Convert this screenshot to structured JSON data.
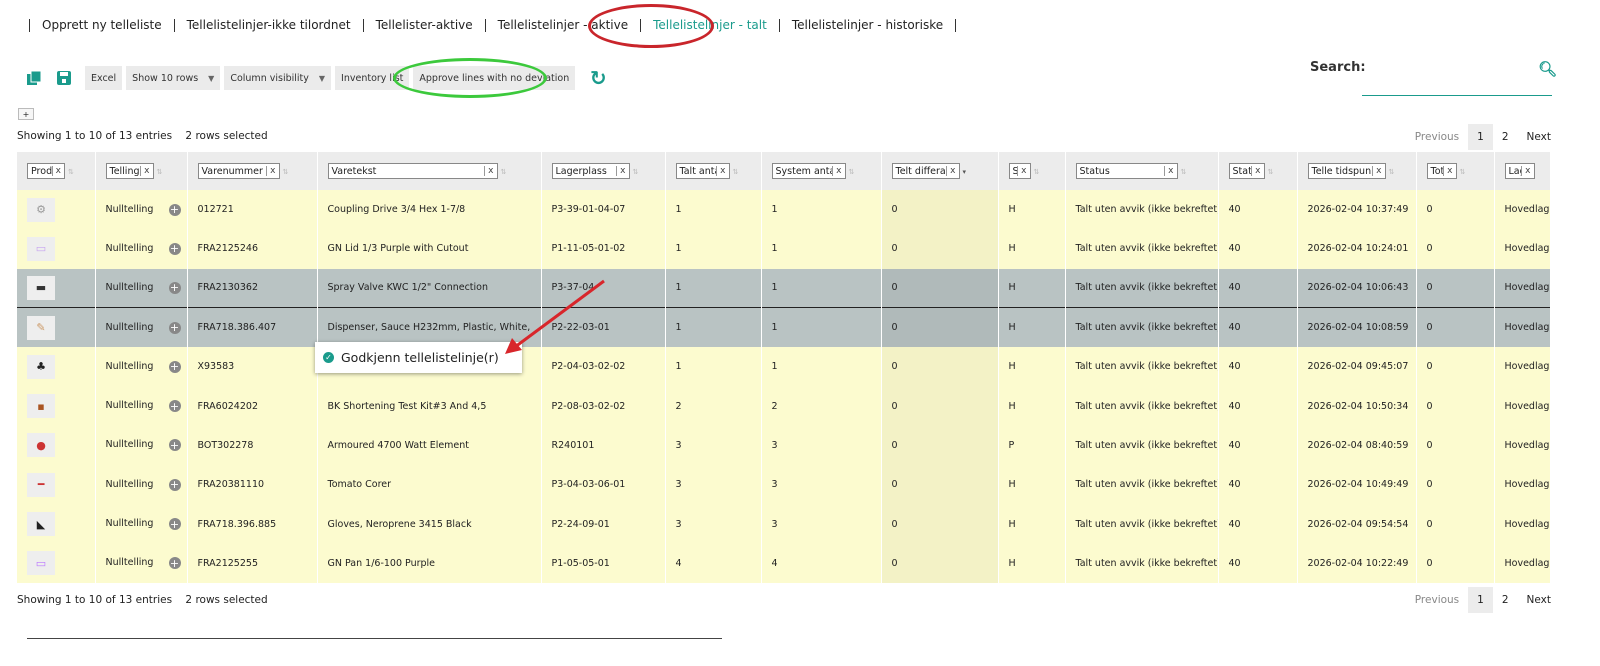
{
  "nav": {
    "tabs": [
      "Opprett ny telleliste",
      "Tellelistelinjer-ikke tilordnet",
      "Tellelister-aktive",
      "Tellelistelinjer - aktive",
      "Tellelistelinjer - talt",
      "Tellelistelinjer - historiske"
    ],
    "active": "Tellelistelinjer - talt"
  },
  "toolbar": {
    "icons": [
      "copy-icon",
      "save-icon"
    ],
    "excel": "Excel",
    "show_rows": "Show 10 rows",
    "column_visibility": "Column visibility",
    "inventory_list": "Inventory list",
    "approve": "Approve lines with no deviation",
    "refresh_icon": "refresh-icon",
    "expand": "+"
  },
  "search": {
    "label": "Search:",
    "value": ""
  },
  "info": {
    "showing": "Showing 1 to 10 of 13 entries",
    "selected": "2 rows selected"
  },
  "pager": {
    "previous": "Previous",
    "pages": [
      "1",
      "2"
    ],
    "current": "1",
    "next": "Next"
  },
  "columns": [
    "Produkt",
    "Telling",
    "Varenummer",
    "Varetekst",
    "Lagerplass",
    "Talt antall",
    "System antall",
    "Telt differanse",
    "Sone",
    "Status",
    "Statuslinje",
    "Telle tidspunkt",
    "Total p",
    "Lagersted"
  ],
  "rows": [
    {
      "telling": "Nulltelling",
      "varenr": "012721",
      "tekst": "Coupling Drive 3/4 Hex 1-7/8",
      "lager": "P3-39-01-04-07",
      "talt": "1",
      "system": "1",
      "diff": "0",
      "sone": "H",
      "status": "Talt uten avvik (ikke bekreftet)",
      "statusl": "40",
      "tid": "2026-02-04 10:37:49",
      "total": "0",
      "lagersted": "Hovedlager",
      "selected": false
    },
    {
      "telling": "Nulltelling",
      "varenr": "FRA2125246",
      "tekst": "GN Lid 1/3 Purple with Cutout",
      "lager": "P1-11-05-01-02",
      "talt": "1",
      "system": "1",
      "diff": "0",
      "sone": "H",
      "status": "Talt uten avvik (ikke bekreftet)",
      "statusl": "40",
      "tid": "2026-02-04 10:24:01",
      "total": "0",
      "lagersted": "Hovedlager",
      "selected": false
    },
    {
      "telling": "Nulltelling",
      "varenr": "FRA2130362",
      "tekst": "Spray Valve KWC 1/2\" Connection",
      "lager": "P3-37-04",
      "talt": "1",
      "system": "1",
      "diff": "0",
      "sone": "H",
      "status": "Talt uten avvik (ikke bekreftet)",
      "statusl": "40",
      "tid": "2026-02-04 10:06:43",
      "total": "0",
      "lagersted": "Hovedlager",
      "selected": true
    },
    {
      "telling": "Nulltelling",
      "varenr": "FRA718.386.407",
      "tekst": "Dispenser, Sauce H232mm, Plastic, White,",
      "lager": "P2-22-03-01",
      "talt": "1",
      "system": "1",
      "diff": "0",
      "sone": "H",
      "status": "Talt uten avvik (ikke bekreftet)",
      "statusl": "40",
      "tid": "2026-02-04 10:08:59",
      "total": "0",
      "lagersted": "Hovedlager",
      "selected": true
    },
    {
      "telling": "Nulltelling",
      "varenr": "X93583",
      "tekst": "",
      "lager": "P2-04-03-02-02",
      "talt": "1",
      "system": "1",
      "diff": "0",
      "sone": "H",
      "status": "Talt uten avvik (ikke bekreftet)",
      "statusl": "40",
      "tid": "2026-02-04 09:45:07",
      "total": "0",
      "lagersted": "Hovedlager",
      "selected": false
    },
    {
      "telling": "Nulltelling",
      "varenr": "FRA6024202",
      "tekst": "BK Shortening Test Kit#3 And 4,5",
      "lager": "P2-08-03-02-02",
      "talt": "2",
      "system": "2",
      "diff": "0",
      "sone": "H",
      "status": "Talt uten avvik (ikke bekreftet)",
      "statusl": "40",
      "tid": "2026-02-04 10:50:34",
      "total": "0",
      "lagersted": "Hovedlager",
      "selected": false
    },
    {
      "telling": "Nulltelling",
      "varenr": "BOT302278",
      "tekst": "Armoured 4700 Watt Element",
      "lager": "R240101",
      "talt": "3",
      "system": "3",
      "diff": "0",
      "sone": "P",
      "status": "Talt uten avvik (ikke bekreftet)",
      "statusl": "40",
      "tid": "2026-02-04 08:40:59",
      "total": "0",
      "lagersted": "Hovedlager",
      "selected": false
    },
    {
      "telling": "Nulltelling",
      "varenr": "FRA20381110",
      "tekst": "Tomato Corer",
      "lager": "P3-04-03-06-01",
      "talt": "3",
      "system": "3",
      "diff": "0",
      "sone": "H",
      "status": "Talt uten avvik (ikke bekreftet)",
      "statusl": "40",
      "tid": "2026-02-04 10:49:49",
      "total": "0",
      "lagersted": "Hovedlager",
      "selected": false
    },
    {
      "telling": "Nulltelling",
      "varenr": "FRA718.396.885",
      "tekst": "Gloves, Neroprene 3415 Black",
      "lager": "P2-24-09-01",
      "talt": "3",
      "system": "3",
      "diff": "0",
      "sone": "H",
      "status": "Talt uten avvik (ikke bekreftet)",
      "statusl": "40",
      "tid": "2026-02-04 09:54:54",
      "total": "0",
      "lagersted": "Hovedlager",
      "selected": false
    },
    {
      "telling": "Nulltelling",
      "varenr": "FRA2125255",
      "tekst": "GN Pan 1/6-100 Purple",
      "lager": "P1-05-05-01",
      "talt": "4",
      "system": "4",
      "diff": "0",
      "sone": "H",
      "status": "Talt uten avvik (ikke bekreftet)",
      "statusl": "40",
      "tid": "2026-02-04 10:22:49",
      "total": "0",
      "lagersted": "Hovedlager",
      "selected": false
    }
  ],
  "context_menu": {
    "label": "Godkjenn tellelistelinje(r)",
    "icon": "check-circle-icon"
  },
  "colors": {
    "accent": "#1a9b8c",
    "row_yellow": "#fcfbcf",
    "row_selected": "#b9c3c3",
    "annotation_red": "#c9252b",
    "annotation_green": "#3cc93c"
  }
}
